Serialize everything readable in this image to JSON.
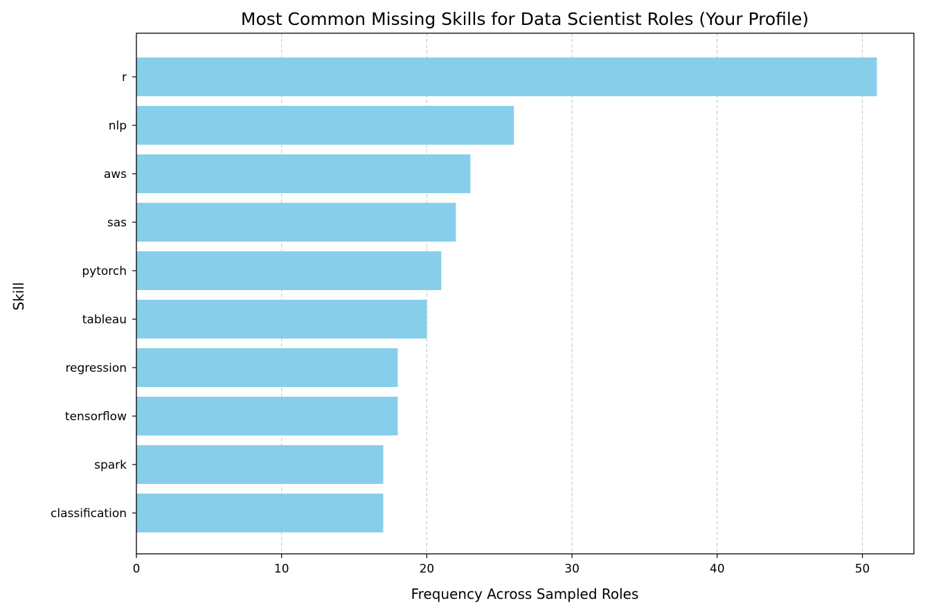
{
  "chart_data": {
    "type": "bar",
    "orientation": "horizontal",
    "title": "Most Common Missing Skills for Data Scientist Roles (Your Profile)",
    "xlabel": "Frequency Across Sampled Roles",
    "ylabel": "Skill",
    "categories": [
      "r",
      "nlp",
      "aws",
      "sas",
      "pytorch",
      "tableau",
      "regression",
      "tensorflow",
      "spark",
      "classification"
    ],
    "values": [
      51,
      26,
      23,
      22,
      21,
      20,
      18,
      18,
      17,
      17
    ],
    "xlim": [
      0,
      53.55
    ],
    "xticks": [
      0,
      10,
      20,
      30,
      40,
      50
    ],
    "grid": "x-dashed",
    "bar_color": "#87CEEB",
    "grid_color": "#cccccc"
  }
}
